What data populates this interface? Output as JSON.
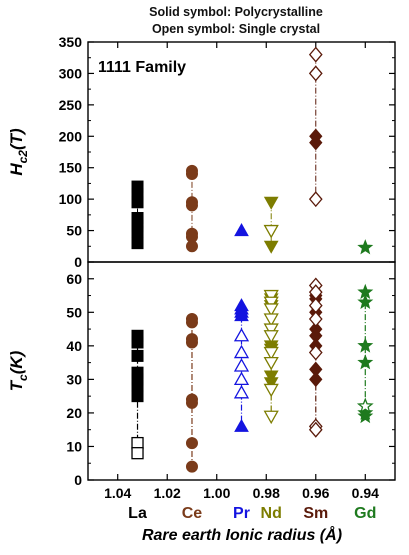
{
  "chart_data": {
    "type": "scatter",
    "annotation_lines": [
      "Solid symbol: Polycrystalline",
      "Open symbol: Single crystal"
    ],
    "panel_label": "1111 Family",
    "xlabel": "Rare earth Ionic radius (Å)",
    "x_ticks": [
      "1.04",
      "1.02",
      "1.00",
      "0.98",
      "0.96",
      "0.94"
    ],
    "x_tick_values": [
      1.04,
      1.02,
      1.0,
      0.98,
      0.96,
      0.94
    ],
    "xlim": [
      1.052,
      0.928
    ],
    "top_panel": {
      "ylabel": "Hc2(T)",
      "ylabel_main": "H",
      "ylabel_sub": "c2",
      "ylabel_tail": "(T)",
      "ylim": [
        0,
        350
      ],
      "yticks": [
        "0",
        "50",
        "100",
        "150",
        "200",
        "250",
        "300",
        "350"
      ],
      "ytick_values": [
        0,
        50,
        100,
        150,
        200,
        250,
        300,
        350
      ]
    },
    "bottom_panel": {
      "ylabel": "Tc(K)",
      "ylabel_main": "T",
      "ylabel_sub": "c",
      "ylabel_tail": "(K)",
      "ylim": [
        0,
        65
      ],
      "yticks": [
        "0",
        "10",
        "20",
        "30",
        "40",
        "50",
        "60"
      ],
      "ytick_values": [
        0,
        10,
        20,
        30,
        40,
        50,
        60
      ]
    },
    "series": [
      {
        "name": "La",
        "color": "#000000",
        "marker": "square",
        "x": 1.032,
        "hc2_solid": [
          120,
          108,
          95,
          70,
          63,
          57,
          48,
          30
        ],
        "hc2_open": [],
        "tc_solid": [
          43,
          41,
          37,
          32,
          30,
          28,
          25
        ],
        "tc_open": [
          11,
          8
        ]
      },
      {
        "name": "Ce",
        "color": "#7a3b1a",
        "marker": "circle",
        "x": 1.01,
        "hc2_solid": [
          145,
          140,
          95,
          90,
          45,
          40,
          25
        ],
        "hc2_open": [],
        "tc_solid": [
          48,
          47,
          42,
          41,
          24,
          23,
          11,
          4
        ],
        "tc_open": []
      },
      {
        "name": "Pr",
        "color": "#1414e0",
        "marker": "triangle-up",
        "x": 0.99,
        "hc2_solid": [
          50
        ],
        "hc2_open": [],
        "tc_solid": [
          52,
          51,
          50,
          49,
          16
        ],
        "tc_open": [
          43,
          38,
          34,
          30,
          26
        ]
      },
      {
        "name": "Nd",
        "color": "#7d7d00",
        "marker": "triangle-down",
        "x": 0.978,
        "hc2_solid": [
          95,
          50,
          25
        ],
        "hc2_open": [
          50
        ],
        "tc_solid": [
          54,
          52,
          40,
          39,
          31,
          29
        ],
        "tc_open": [
          55,
          53,
          51,
          48,
          45,
          43,
          38,
          35,
          27,
          19
        ]
      },
      {
        "name": "Sm",
        "color": "#5a1a0a",
        "marker": "diamond",
        "x": 0.96,
        "hc2_solid": [
          300,
          200,
          190
        ],
        "hc2_open": [
          330,
          300,
          100
        ],
        "tc_solid": [
          55,
          54,
          50,
          45,
          43,
          40,
          33,
          30
        ],
        "tc_open": [
          58,
          56,
          52,
          48,
          38,
          16,
          15
        ]
      },
      {
        "name": "Gd",
        "color": "#1e7a1e",
        "marker": "star",
        "x": 0.94,
        "hc2_solid": [
          23
        ],
        "hc2_open": [],
        "tc_solid": [
          56,
          53,
          40,
          35,
          20,
          19
        ],
        "tc_open": [
          22
        ]
      }
    ]
  }
}
